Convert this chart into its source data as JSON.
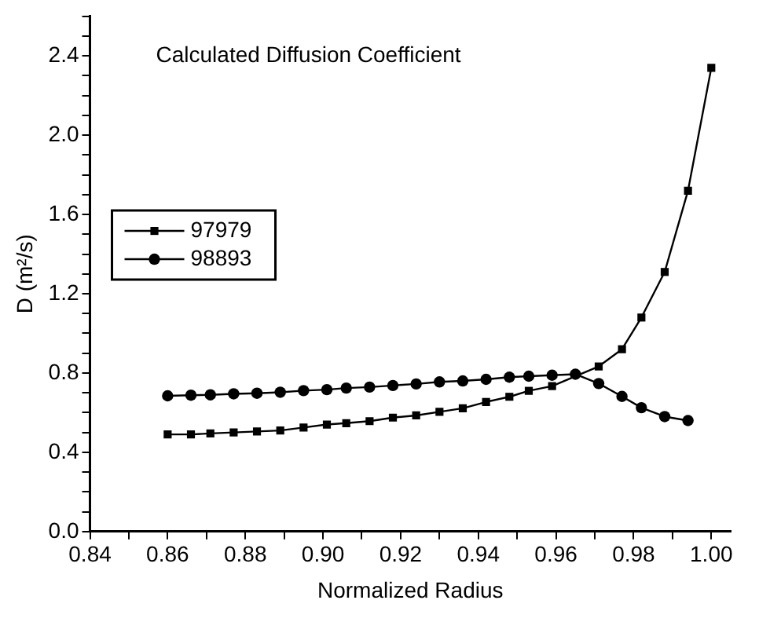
{
  "chart_data": {
    "type": "line",
    "title": "Calculated Diffusion Coefficient",
    "xlabel": "Normalized Radius",
    "ylabel": "D (m²/s)",
    "xlim": [
      0.84,
      1.005
    ],
    "xticks": [
      {
        "value": 0.84,
        "label": "0.84"
      },
      {
        "value": 0.85,
        "label": null
      },
      {
        "value": 0.86,
        "label": "0.86"
      },
      {
        "value": 0.87,
        "label": null
      },
      {
        "value": 0.88,
        "label": "0.88"
      },
      {
        "value": 0.89,
        "label": null
      },
      {
        "value": 0.9,
        "label": "0.90"
      },
      {
        "value": 0.91,
        "label": null
      },
      {
        "value": 0.92,
        "label": "0.92"
      },
      {
        "value": 0.93,
        "label": null
      },
      {
        "value": 0.94,
        "label": "0.94"
      },
      {
        "value": 0.95,
        "label": null
      },
      {
        "value": 0.96,
        "label": "0.96"
      },
      {
        "value": 0.97,
        "label": null
      },
      {
        "value": 0.98,
        "label": "0.98"
      },
      {
        "value": 0.99,
        "label": null
      },
      {
        "value": 1.0,
        "label": "1.00"
      }
    ],
    "ylim": [
      0,
      2.6
    ],
    "yticks": [
      {
        "value": 0,
        "label": "0.0"
      },
      {
        "value": 0.1,
        "label": null
      },
      {
        "value": 0.2,
        "label": null
      },
      {
        "value": 0.3,
        "label": null
      },
      {
        "value": 0.4,
        "label": "0.4"
      },
      {
        "value": 0.5,
        "label": null
      },
      {
        "value": 0.6,
        "label": null
      },
      {
        "value": 0.7,
        "label": null
      },
      {
        "value": 0.8,
        "label": "0.8"
      },
      {
        "value": 0.9,
        "label": null
      },
      {
        "value": 1.0,
        "label": null
      },
      {
        "value": 1.1,
        "label": null
      },
      {
        "value": 1.2,
        "label": "1.2"
      },
      {
        "value": 1.3,
        "label": null
      },
      {
        "value": 1.4,
        "label": null
      },
      {
        "value": 1.5,
        "label": null
      },
      {
        "value": 1.6,
        "label": "1.6"
      },
      {
        "value": 1.7,
        "label": null
      },
      {
        "value": 1.8,
        "label": null
      },
      {
        "value": 1.9,
        "label": null
      },
      {
        "value": 2.0,
        "label": "2.0"
      },
      {
        "value": 2.1,
        "label": null
      },
      {
        "value": 2.2,
        "label": null
      },
      {
        "value": 2.3,
        "label": null
      },
      {
        "value": 2.4,
        "label": "2.4"
      },
      {
        "value": 2.5,
        "label": null
      },
      {
        "value": 2.6,
        "label": null
      }
    ],
    "grid": false,
    "legend": "left",
    "line_style": "solid",
    "series": [
      {
        "name": "97979",
        "color": "#000000",
        "marker": "square",
        "x": [
          0.86,
          0.866,
          0.871,
          0.877,
          0.883,
          0.889,
          0.895,
          0.901,
          0.906,
          0.912,
          0.918,
          0.924,
          0.93,
          0.936,
          0.942,
          0.948,
          0.953,
          0.959,
          0.971,
          0.977,
          0.982,
          0.988,
          0.994,
          1.0
        ],
        "values": [
          0.49,
          0.49,
          0.495,
          0.5,
          0.505,
          0.51,
          0.525,
          0.54,
          0.547,
          0.557,
          0.575,
          0.586,
          0.604,
          0.622,
          0.654,
          0.68,
          0.71,
          0.734,
          0.833,
          0.92,
          1.08,
          1.31,
          1.72,
          2.34
        ]
      },
      {
        "name": "98893",
        "color": "#000000",
        "marker": "circle",
        "x": [
          0.86,
          0.866,
          0.871,
          0.877,
          0.883,
          0.889,
          0.895,
          0.901,
          0.906,
          0.912,
          0.918,
          0.924,
          0.93,
          0.936,
          0.942,
          0.948,
          0.953,
          0.959,
          0.965,
          0.971,
          0.977,
          0.982,
          0.988,
          0.994
        ],
        "values": [
          0.685,
          0.688,
          0.69,
          0.695,
          0.698,
          0.703,
          0.711,
          0.716,
          0.724,
          0.729,
          0.737,
          0.745,
          0.755,
          0.76,
          0.768,
          0.779,
          0.784,
          0.789,
          0.794,
          0.747,
          0.682,
          0.625,
          0.58,
          0.56
        ]
      }
    ]
  }
}
